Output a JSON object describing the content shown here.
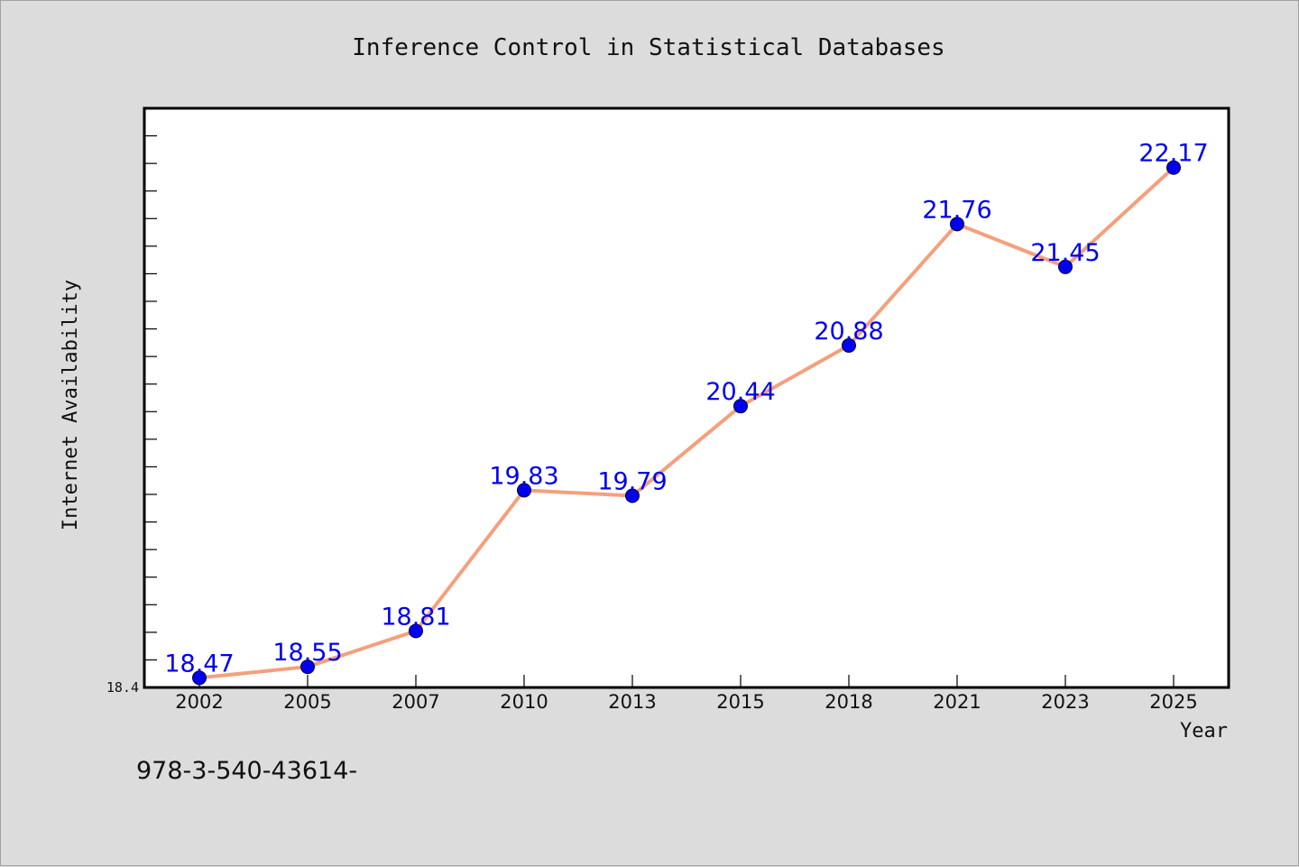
{
  "chart_data": {
    "type": "line",
    "title": "Inference Control in Statistical Databases",
    "xlabel": "Year",
    "ylabel": "Internet Availability",
    "categories": [
      "2002",
      "2005",
      "2007",
      "2010",
      "2013",
      "2015",
      "2018",
      "2021",
      "2023",
      "2025"
    ],
    "series": [
      {
        "values": [
          18.47,
          18.55,
          18.81,
          19.83,
          19.79,
          20.44,
          20.88,
          21.76,
          21.45,
          22.17
        ]
      }
    ],
    "data_labels": [
      "18.47",
      "18.55",
      "18.81",
      "19.83",
      "19.79",
      "20.44",
      "20.88",
      "21.76",
      "21.45",
      "22.17"
    ],
    "ylim": [
      18.4,
      22.6
    ],
    "y_tick_labels": [
      "18.4"
    ],
    "grid": false,
    "line_color": "#f4a07c",
    "marker_color": "#0000ee",
    "label_color": "#0000ee"
  },
  "footer_text": "978-3-540-43614-"
}
